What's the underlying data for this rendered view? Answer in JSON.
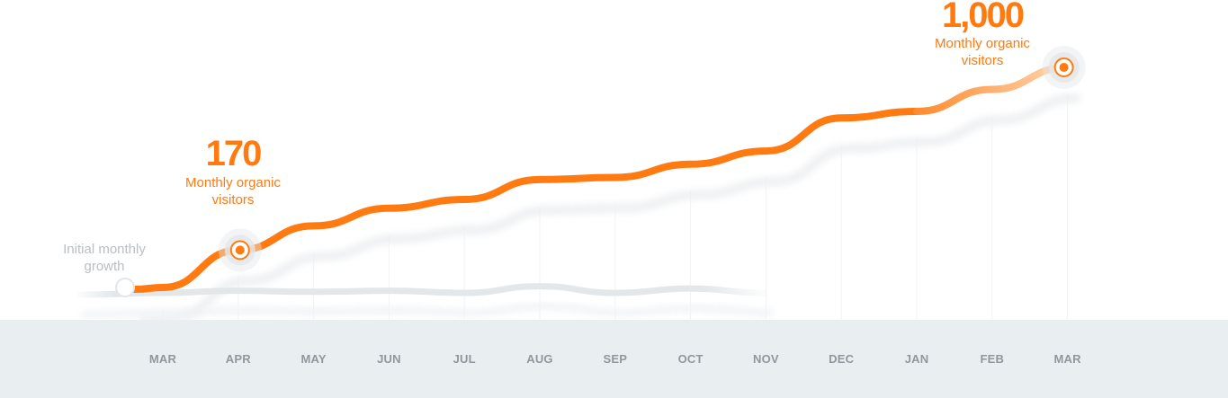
{
  "chart_data": {
    "type": "line",
    "categories": [
      "MAR",
      "APR",
      "MAY",
      "JUN",
      "JUL",
      "AUG",
      "SEP",
      "OCT",
      "NOV",
      "DEC",
      "JAN",
      "FEB",
      "MAR"
    ],
    "series": [
      {
        "values": [
          0,
          170,
          280,
          360,
          400,
          490,
          500,
          560,
          620,
          770,
          800,
          900,
          1000
        ]
      },
      {
        "values": [
          0,
          10,
          5,
          10,
          0,
          30,
          0,
          20,
          null,
          null,
          null,
          null,
          null
        ]
      }
    ],
    "ylim": [
      0,
      1100
    ],
    "grid": "vertical",
    "annotations": [
      {
        "category_index": 1,
        "number": "170",
        "line1": "Monthly organic",
        "line2": "visitors"
      },
      {
        "category_index": 12,
        "number": "1,000",
        "line1": "Monthly organic",
        "line2": "visitors"
      },
      {
        "category_index": 0,
        "line1": "Initial monthly",
        "line2": "growth"
      }
    ],
    "colors": {
      "primary": "#ff7a10",
      "primary_fade": "#ffd2aa",
      "secondary": "#e3e7ea",
      "axis_band": "#e9eef0",
      "tick_text": "#8f989e",
      "muted_text": "#b9bec2",
      "marker_halo": "#e4e6e8"
    }
  }
}
